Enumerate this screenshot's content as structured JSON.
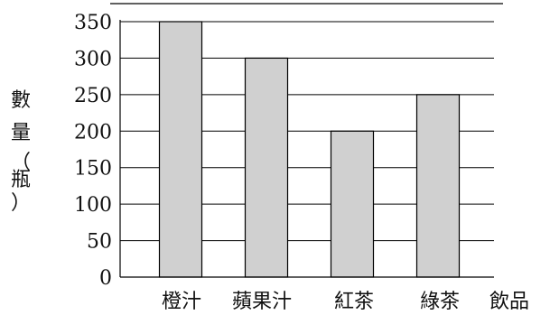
{
  "chart_data": {
    "type": "bar",
    "categories": [
      "橙汁",
      "蘋果汁",
      "紅茶",
      "綠茶"
    ],
    "values": [
      350,
      300,
      200,
      250
    ],
    "ylim": [
      0,
      350
    ],
    "yticks": [
      0,
      50,
      100,
      150,
      200,
      250,
      300,
      350
    ],
    "ylabel_chars": [
      "數",
      "量",
      "（",
      "瓶",
      "）"
    ],
    "xlabel": "飲品",
    "grid": true,
    "bar_color": "#d0d0d0",
    "line_color": "#000000"
  }
}
